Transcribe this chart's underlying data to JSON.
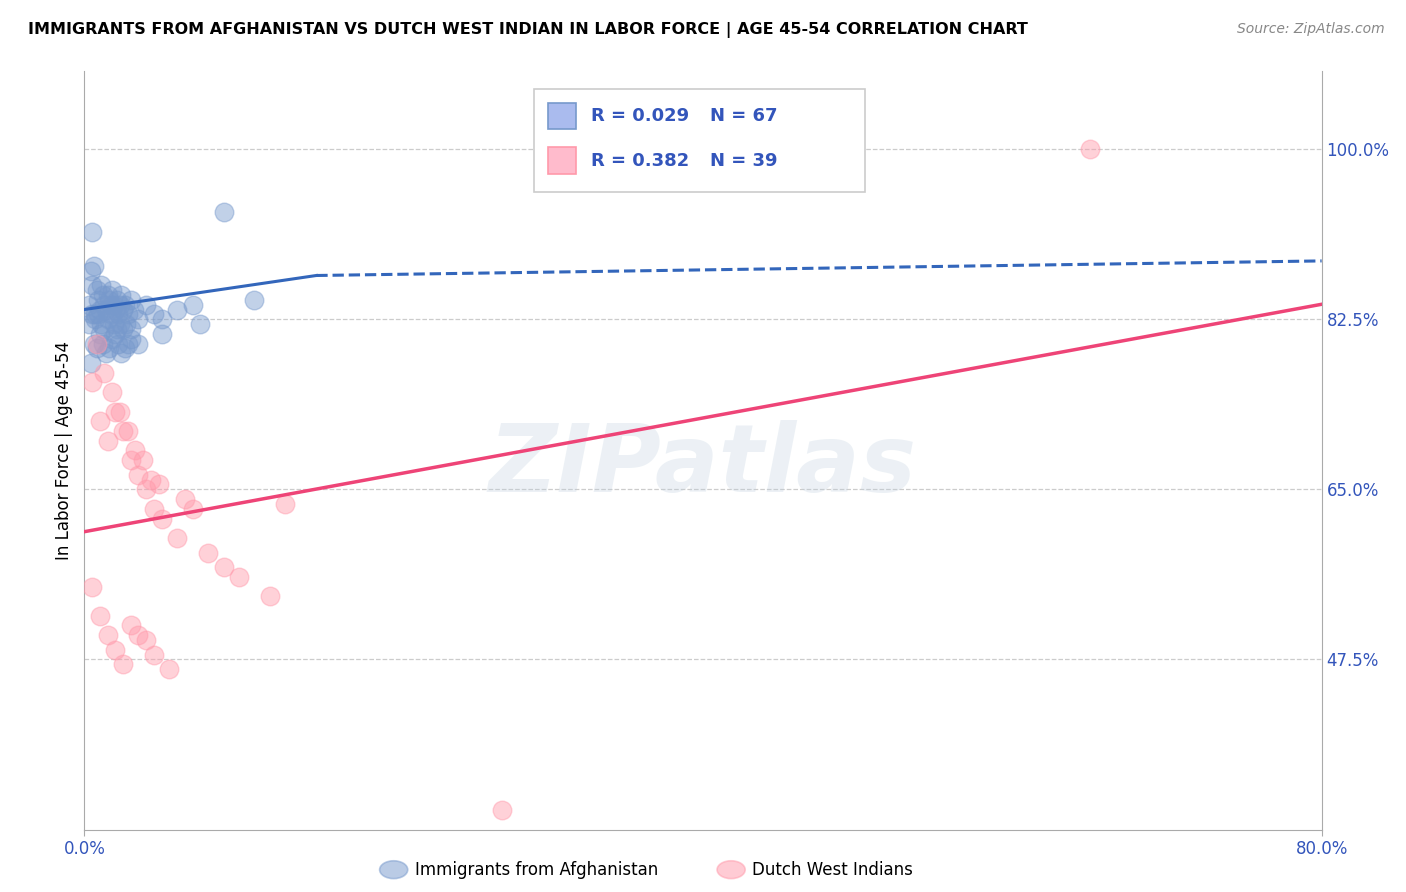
{
  "title": "IMMIGRANTS FROM AFGHANISTAN VS DUTCH WEST INDIAN IN LABOR FORCE | AGE 45-54 CORRELATION CHART",
  "source": "Source: ZipAtlas.com",
  "ylabel": "In Labor Force | Age 45-54",
  "xlim": [
    0.0,
    80.0
  ],
  "ylim": [
    30.0,
    108.0
  ],
  "yticks": [
    47.5,
    65.0,
    82.5,
    100.0
  ],
  "xticks": [
    0.0,
    80.0
  ],
  "legend_r1": "0.029",
  "legend_n1": "67",
  "legend_r2": "0.382",
  "legend_n2": "39",
  "color_blue": "#7799CC",
  "color_pink": "#FF99AA",
  "color_blue_line": "#3366BB",
  "color_pink_line": "#EE4477",
  "color_text": "#3355BB",
  "watermark": "ZIPatlas",
  "afghanistan_x": [
    0.3,
    0.4,
    0.5,
    0.5,
    0.6,
    0.7,
    0.8,
    0.9,
    1.0,
    1.1,
    1.2,
    1.3,
    1.4,
    1.5,
    1.6,
    1.7,
    1.8,
    1.9,
    2.0,
    2.1,
    2.2,
    2.3,
    2.4,
    2.5,
    2.6,
    2.8,
    3.0,
    3.2,
    3.5,
    4.0,
    4.5,
    5.0,
    6.0,
    7.0,
    0.4,
    0.6,
    0.8,
    1.0,
    1.2,
    1.4,
    1.6,
    1.8,
    2.0,
    2.2,
    2.4,
    2.6,
    2.8,
    3.0,
    0.3,
    0.5,
    0.7,
    0.9,
    1.1,
    1.3,
    1.5,
    1.7,
    1.9,
    2.1,
    2.3,
    2.5,
    2.7,
    3.0,
    3.5,
    5.0,
    7.5,
    9.0,
    11.0
  ],
  "afghanistan_y": [
    84.0,
    87.5,
    86.0,
    91.5,
    88.0,
    83.0,
    85.5,
    84.5,
    83.5,
    86.0,
    85.0,
    84.0,
    83.5,
    85.0,
    84.5,
    84.0,
    85.5,
    84.0,
    83.5,
    84.5,
    83.0,
    84.0,
    85.0,
    83.5,
    84.0,
    83.0,
    84.5,
    83.5,
    82.5,
    84.0,
    83.0,
    82.5,
    83.5,
    84.0,
    78.0,
    80.0,
    79.5,
    81.0,
    80.0,
    79.0,
    79.5,
    80.5,
    81.0,
    80.0,
    79.0,
    79.5,
    80.0,
    80.5,
    82.0,
    83.0,
    82.5,
    83.0,
    82.0,
    81.5,
    82.5,
    83.0,
    82.0,
    81.5,
    82.0,
    81.5,
    82.0,
    81.5,
    80.0,
    81.0,
    82.0,
    93.5,
    84.5
  ],
  "dutch_x": [
    0.5,
    1.0,
    1.5,
    2.0,
    2.5,
    3.0,
    3.5,
    4.0,
    4.5,
    5.0,
    6.0,
    7.0,
    8.0,
    9.0,
    10.0,
    12.0,
    0.8,
    1.3,
    1.8,
    2.3,
    2.8,
    3.3,
    3.8,
    4.3,
    4.8,
    0.5,
    1.0,
    1.5,
    2.0,
    2.5,
    3.0,
    3.5,
    4.0,
    4.5,
    5.5,
    27.0,
    65.0,
    13.0,
    6.5
  ],
  "dutch_y": [
    76.0,
    72.0,
    70.0,
    73.0,
    71.0,
    68.0,
    66.5,
    65.0,
    63.0,
    62.0,
    60.0,
    63.0,
    58.5,
    57.0,
    56.0,
    54.0,
    80.0,
    77.0,
    75.0,
    73.0,
    71.0,
    69.0,
    68.0,
    66.0,
    65.5,
    55.0,
    52.0,
    50.0,
    48.5,
    47.0,
    51.0,
    50.0,
    49.5,
    48.0,
    46.5,
    32.0,
    100.0,
    63.5,
    64.0
  ]
}
